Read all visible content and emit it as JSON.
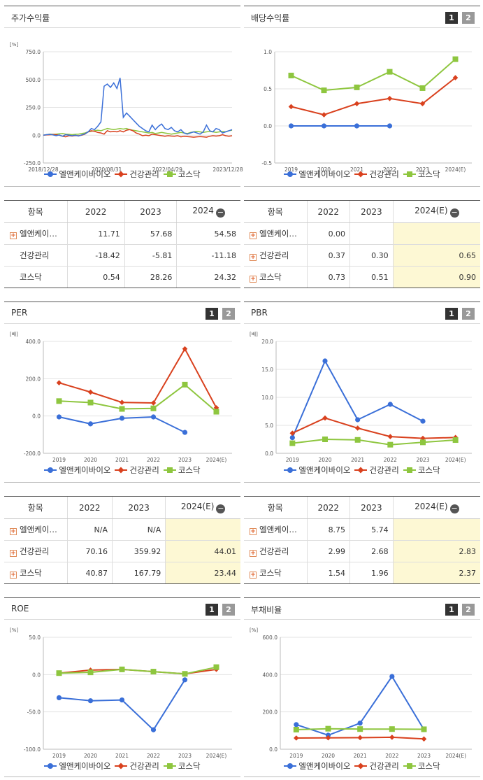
{
  "series_names": [
    "엘앤케이바이오",
    "건강관리",
    "코스닥"
  ],
  "colors": {
    "s1": "#3a6fd8",
    "s2": "#d9411e",
    "s3": "#8ec63f"
  },
  "pager": {
    "p1": "1",
    "p2": "2"
  },
  "charts": {
    "stock": {
      "title": "주가수익률",
      "unit": "[%]",
      "chart_data": {
        "type": "line",
        "y_ticks": [
          "750.0",
          "500.0",
          "250.0",
          "0.0",
          "-250.0"
        ],
        "x_ticks": [
          "2018/12/28",
          "2020/08/31",
          "2022/04/29",
          "2023/12/28"
        ],
        "ylim": [
          -250,
          750
        ],
        "series": [
          {
            "name": "엘앤케이바이오",
            "values": [
              0,
              5,
              8,
              3,
              -5,
              2,
              -10,
              5,
              0,
              -5,
              0,
              -8,
              3,
              12,
              30,
              60,
              50,
              80,
              120,
              440,
              460,
              430,
              470,
              420,
              515,
              160,
              200,
              170,
              140,
              110,
              80,
              60,
              40,
              30,
              90,
              50,
              80,
              100,
              60,
              50,
              70,
              40,
              30,
              50,
              20,
              10,
              20,
              30,
              20,
              10,
              30,
              90,
              40,
              30,
              60,
              50,
              20,
              30,
              40,
              50
            ]
          },
          {
            "name": "건강관리",
            "values": [
              0,
              2,
              4,
              6,
              5,
              0,
              -10,
              -15,
              -5,
              -8,
              -3,
              -5,
              0,
              10,
              30,
              40,
              35,
              25,
              20,
              10,
              40,
              30,
              35,
              30,
              40,
              30,
              45,
              50,
              40,
              20,
              10,
              -5,
              0,
              -5,
              10,
              5,
              0,
              -5,
              -10,
              -5,
              -8,
              -10,
              -5,
              -15,
              -10,
              -12,
              -15,
              -18,
              -15,
              -12,
              -15,
              -18,
              -10,
              -5,
              -8,
              -5,
              5,
              -5,
              -10,
              -5
            ]
          },
          {
            "name": "코스닥",
            "values": [
              0,
              5,
              10,
              8,
              10,
              12,
              15,
              10,
              8,
              5,
              8,
              10,
              15,
              20,
              30,
              35,
              40,
              45,
              40,
              50,
              60,
              55,
              50,
              55,
              60,
              55,
              60,
              50,
              45,
              40,
              35,
              30,
              25,
              20,
              25,
              15,
              20,
              25,
              20,
              15,
              10,
              15,
              20,
              25,
              20,
              15,
              25,
              30,
              35,
              30,
              25,
              30,
              35,
              30,
              25,
              30,
              35,
              30,
              40,
              45
            ]
          }
        ]
      }
    },
    "div": {
      "title": "배당수익률",
      "chart_data": {
        "type": "line",
        "y_ticks": [
          "1.0",
          "0.5",
          "0.0",
          "-0.5"
        ],
        "ylim": [
          -0.5,
          1.0
        ],
        "categories": [
          "2019",
          "2020",
          "2021",
          "2022",
          "2023",
          "2024(E)"
        ],
        "series": [
          {
            "name": "엘앤케이바이오",
            "values": [
              0.0,
              0.0,
              0.0,
              0.0,
              null,
              null
            ]
          },
          {
            "name": "건강관리",
            "values": [
              0.26,
              0.15,
              0.3,
              0.37,
              0.3,
              0.65
            ]
          },
          {
            "name": "코스닥",
            "values": [
              0.68,
              0.48,
              0.52,
              0.73,
              0.51,
              0.9
            ]
          }
        ]
      }
    },
    "per": {
      "title": "PER",
      "unit": "[배]",
      "chart_data": {
        "type": "line",
        "y_ticks": [
          "400.0",
          "200.0",
          "0.0",
          "-200.0"
        ],
        "ylim": [
          -200,
          400
        ],
        "categories": [
          "2019",
          "2020",
          "2021",
          "2022",
          "2023",
          "2024(E)"
        ],
        "series": [
          {
            "name": "엘앤케이바이오",
            "values": [
              -5,
              -42,
              -12,
              -5,
              -88,
              null
            ]
          },
          {
            "name": "건강관리",
            "values": [
              178,
              128,
              73,
              70,
              360,
              44
            ]
          },
          {
            "name": "코스닥",
            "values": [
              80,
              72,
              38,
              41,
              168,
              23
            ]
          }
        ]
      }
    },
    "pbr": {
      "title": "PBR",
      "unit": "[배]",
      "chart_data": {
        "type": "line",
        "y_ticks": [
          "20.0",
          "15.0",
          "10.0",
          "5.0",
          "0.0"
        ],
        "ylim": [
          0,
          20
        ],
        "categories": [
          "2019",
          "2020",
          "2021",
          "2022",
          "2023",
          "2024(E)"
        ],
        "series": [
          {
            "name": "엘앤케이바이오",
            "values": [
              2.8,
              16.5,
              6.0,
              8.75,
              5.74,
              null
            ]
          },
          {
            "name": "건강관리",
            "values": [
              3.6,
              6.3,
              4.5,
              2.99,
              2.68,
              2.83
            ]
          },
          {
            "name": "코스닥",
            "values": [
              1.8,
              2.5,
              2.4,
              1.54,
              1.96,
              2.37
            ]
          }
        ]
      }
    },
    "roe": {
      "title": "ROE",
      "unit": "[%]",
      "chart_data": {
        "type": "line",
        "y_ticks": [
          "50.0",
          "0.0",
          "-50.0",
          "-100.0"
        ],
        "ylim": [
          -100,
          50
        ],
        "categories": [
          "2019",
          "2020",
          "2021",
          "2022",
          "2023",
          "2024(E)"
        ],
        "series": [
          {
            "name": "엘앤케이바이오",
            "values": [
              -31,
              -35,
              -34,
              -74,
              -7,
              null
            ]
          },
          {
            "name": "건강관리",
            "values": [
              2,
              6,
              7,
              4,
              1,
              7
            ]
          },
          {
            "name": "코스닥",
            "values": [
              2,
              3,
              7,
              4,
              1,
              10
            ]
          }
        ]
      }
    },
    "debt": {
      "title": "부채비율",
      "unit": "[%]",
      "chart_data": {
        "type": "line",
        "y_ticks": [
          "600.0",
          "400.0",
          "200.0",
          "0.0"
        ],
        "ylim": [
          0,
          600
        ],
        "categories": [
          "2019",
          "2020",
          "2021",
          "2022",
          "2023",
          "2024(E)"
        ],
        "series": [
          {
            "name": "엘앤케이바이오",
            "values": [
              132,
              75,
              140,
              390,
              105,
              null
            ]
          },
          {
            "name": "건강관리",
            "values": [
              60,
              61,
              62,
              64,
              55,
              null
            ]
          },
          {
            "name": "코스닥",
            "values": [
              105,
              110,
              108,
              108,
              107,
              null
            ]
          }
        ]
      }
    }
  },
  "tables": {
    "stock": {
      "headers": [
        "항목",
        "2022",
        "2023",
        "2024"
      ],
      "rows": [
        {
          "name": "엘앤케이…",
          "plus": true,
          "v": [
            "11.71",
            "57.68",
            "54.58"
          ]
        },
        {
          "name": "건강관리",
          "plus": false,
          "v": [
            "-18.42",
            "-5.81",
            "-11.18"
          ]
        },
        {
          "name": "코스닥",
          "plus": false,
          "v": [
            "0.54",
            "28.26",
            "24.32"
          ]
        }
      ]
    },
    "div": {
      "headers": [
        "항목",
        "2022",
        "2023",
        "2024(E)"
      ],
      "rows": [
        {
          "name": "엘앤케이…",
          "plus": true,
          "v": [
            "0.00",
            "",
            ""
          ]
        },
        {
          "name": "건강관리",
          "plus": true,
          "v": [
            "0.37",
            "0.30",
            "0.65"
          ]
        },
        {
          "name": "코스닥",
          "plus": true,
          "v": [
            "0.73",
            "0.51",
            "0.90"
          ]
        }
      ]
    },
    "per": {
      "headers": [
        "항목",
        "2022",
        "2023",
        "2024(E)"
      ],
      "rows": [
        {
          "name": "엘앤케이…",
          "plus": true,
          "v": [
            "N/A",
            "N/A",
            ""
          ]
        },
        {
          "name": "건강관리",
          "plus": true,
          "v": [
            "70.16",
            "359.92",
            "44.01"
          ]
        },
        {
          "name": "코스닥",
          "plus": true,
          "v": [
            "40.87",
            "167.79",
            "23.44"
          ]
        }
      ]
    },
    "pbr": {
      "headers": [
        "항목",
        "2022",
        "2023",
        "2024(E)"
      ],
      "rows": [
        {
          "name": "엘앤케이…",
          "plus": true,
          "v": [
            "8.75",
            "5.74",
            ""
          ]
        },
        {
          "name": "건강관리",
          "plus": true,
          "v": [
            "2.99",
            "2.68",
            "2.83"
          ]
        },
        {
          "name": "코스닥",
          "plus": true,
          "v": [
            "1.54",
            "1.96",
            "2.37"
          ]
        }
      ]
    }
  }
}
